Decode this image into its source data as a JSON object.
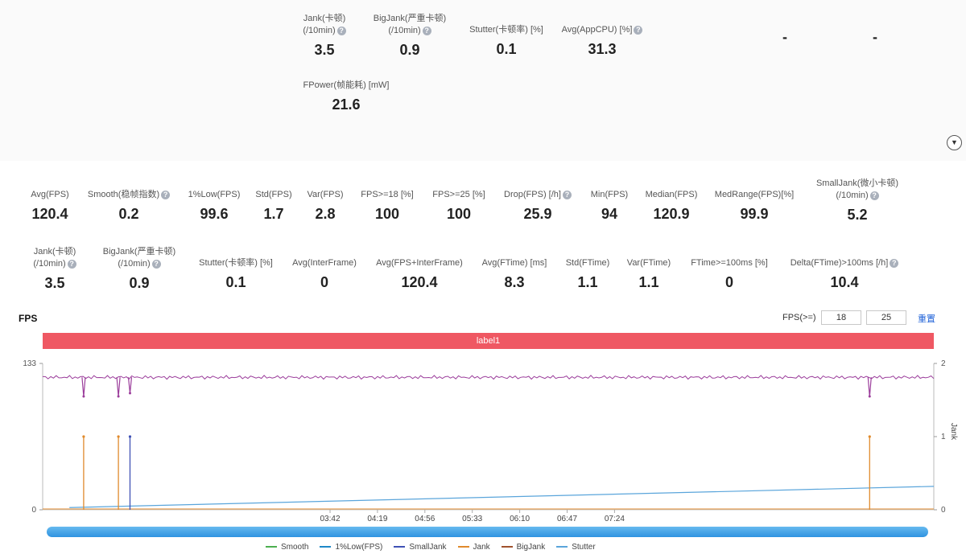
{
  "top_metrics": [
    {
      "label_lines": [
        "Jank(卡顿)",
        "(/10min)"
      ],
      "help": true,
      "value": "3.5"
    },
    {
      "label_lines": [
        "BigJank(严重卡顿)",
        "(/10min)"
      ],
      "help": true,
      "value": "0.9"
    },
    {
      "label_lines": [
        "Stutter(卡顿率) [%]"
      ],
      "help": false,
      "value": "0.1"
    },
    {
      "label_lines": [
        "Avg(AppCPU) [%]"
      ],
      "help": true,
      "value": "31.3"
    },
    {
      "label_lines": [
        ""
      ],
      "help": false,
      "value": "-"
    },
    {
      "label_lines": [
        ""
      ],
      "help": false,
      "value": "-"
    },
    {
      "label_lines": [
        "FPower(帧能耗) [mW]"
      ],
      "help": false,
      "value": "21.6"
    }
  ],
  "row1_metrics": [
    {
      "label_lines": [
        "Avg(FPS)"
      ],
      "help": false,
      "value": "120.4"
    },
    {
      "label_lines": [
        "Smooth(稳帧指数)"
      ],
      "help": true,
      "value": "0.2"
    },
    {
      "label_lines": [
        "1%Low(FPS)"
      ],
      "help": false,
      "value": "99.6"
    },
    {
      "label_lines": [
        "Std(FPS)"
      ],
      "help": false,
      "value": "1.7"
    },
    {
      "label_lines": [
        "Var(FPS)"
      ],
      "help": false,
      "value": "2.8"
    },
    {
      "label_lines": [
        "FPS>=18 [%]"
      ],
      "help": false,
      "value": "100"
    },
    {
      "label_lines": [
        "FPS>=25 [%]"
      ],
      "help": false,
      "value": "100"
    },
    {
      "label_lines": [
        "Drop(FPS) [/h]"
      ],
      "help": true,
      "value": "25.9"
    },
    {
      "label_lines": [
        "Min(FPS)"
      ],
      "help": false,
      "value": "94"
    },
    {
      "label_lines": [
        "Median(FPS)"
      ],
      "help": false,
      "value": "120.9"
    },
    {
      "label_lines": [
        "MedRange(FPS)[%]"
      ],
      "help": false,
      "value": "99.9"
    },
    {
      "label_lines": [
        "SmallJank(微小卡顿)",
        "(/10min)"
      ],
      "help": true,
      "value": "5.2"
    }
  ],
  "row2_metrics": [
    {
      "label_lines": [
        "Jank(卡顿)",
        "(/10min)"
      ],
      "help": true,
      "value": "3.5"
    },
    {
      "label_lines": [
        "BigJank(严重卡顿)",
        "(/10min)"
      ],
      "help": true,
      "value": "0.9"
    },
    {
      "label_lines": [
        "Stutter(卡顿率) [%]"
      ],
      "help": false,
      "value": "0.1"
    },
    {
      "label_lines": [
        "Avg(InterFrame)"
      ],
      "help": false,
      "value": "0"
    },
    {
      "label_lines": [
        "Avg(FPS+InterFrame)"
      ],
      "help": false,
      "value": "120.4"
    },
    {
      "label_lines": [
        "Avg(FTime) [ms]"
      ],
      "help": false,
      "value": "8.3"
    },
    {
      "label_lines": [
        "Std(FTime)"
      ],
      "help": false,
      "value": "1.1"
    },
    {
      "label_lines": [
        "Var(FTime)"
      ],
      "help": false,
      "value": "1.1"
    },
    {
      "label_lines": [
        "FTime>=100ms [%]"
      ],
      "help": false,
      "value": "0"
    },
    {
      "label_lines": [
        "Delta(FTime)>100ms [/h]"
      ],
      "help": true,
      "value": "10.4"
    }
  ],
  "collapse_icon": "chevron-down-icon",
  "chart_header": {
    "title": "FPS",
    "fps_filter_label": "FPS(>=)",
    "fps_threshold_1": "18",
    "fps_threshold_2": "25",
    "reset_label": "重置"
  },
  "chart_data": {
    "type": "line",
    "label_bar": "label1",
    "y_left": {
      "ticks": [
        "133",
        "0"
      ],
      "range": [
        0,
        133
      ]
    },
    "y_right": {
      "label": "Jank",
      "ticks": [
        "2",
        "1",
        "0"
      ],
      "range": [
        0,
        2
      ]
    },
    "x_ticks": [
      "03:42",
      "04:19",
      "04:56",
      "05:33",
      "06:10",
      "06:47",
      "07:24"
    ],
    "legend": [
      "Smooth",
      "1%Low(FPS)",
      "SmallJank",
      "Jank",
      "BigJank",
      "Stutter"
    ],
    "colors": {
      "fps": "#9b3d9b",
      "smooth": "#4caf50",
      "low1": "#1e88c7",
      "smalljank": "#3f51b5",
      "jank": "#e08a2c",
      "bigjank": "#a0522d",
      "stutter": "#5aa5db",
      "label_bar": "#ef5863",
      "scroll": "#3a9be3"
    },
    "fps_series": {
      "baseline": 120.4,
      "dips": [
        {
          "x": 0.046,
          "y": 103
        },
        {
          "x": 0.085,
          "y": 103
        },
        {
          "x": 0.098,
          "y": 106
        },
        {
          "x": 0.928,
          "y": 103
        }
      ]
    },
    "jank_spikes": [
      {
        "series": "jank",
        "x": 0.046,
        "y": 1
      },
      {
        "series": "jank",
        "x": 0.085,
        "y": 1
      },
      {
        "series": "smalljank",
        "x": 0.098,
        "y": 1
      },
      {
        "series": "jank",
        "x": 0.928,
        "y": 1
      }
    ],
    "stutter_trend": {
      "start": 0.03,
      "end": 0.32
    }
  }
}
